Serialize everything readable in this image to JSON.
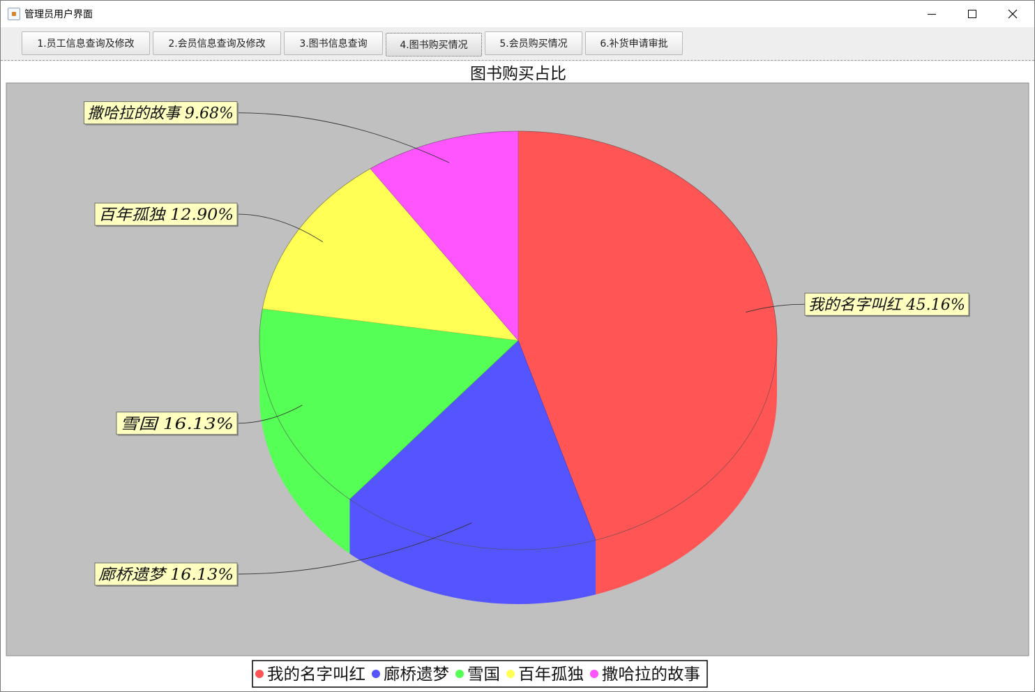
{
  "window": {
    "title": "管理员用户界面",
    "icon": "java-app-icon"
  },
  "tabs": [
    {
      "label": "1.员工信息查询及修改",
      "selected": false
    },
    {
      "label": "2.会员信息查询及修改",
      "selected": false
    },
    {
      "label": "3.图书信息查询",
      "selected": false
    },
    {
      "label": "4.图书购买情况",
      "selected": true
    },
    {
      "label": "5.会员购买情况",
      "selected": false
    },
    {
      "label": "6.补货申请审批",
      "selected": false
    }
  ],
  "chart_data": {
    "type": "pie",
    "style": "3d",
    "title": "图书购买占比",
    "slices": [
      {
        "name": "我的名字叫红",
        "value": 45.16,
        "label": "我的名字叫红  45.16%",
        "color": "#ff5555"
      },
      {
        "name": "廊桥遗梦",
        "value": 16.13,
        "label": "廊桥遗梦  16.13%",
        "color": "#5555ff"
      },
      {
        "name": "雪国",
        "value": 16.13,
        "label": "雪国  16.13%",
        "color": "#55ff55"
      },
      {
        "name": "百年孤独",
        "value": 12.9,
        "label": "百年孤独  12.90%",
        "color": "#ffff55"
      },
      {
        "name": "撒哈拉的故事",
        "value": 9.68,
        "label": "撒哈拉的故事  9.68%",
        "color": "#ff55ff"
      }
    ],
    "legend": {
      "position": "bottom",
      "entries": [
        "我的名字叫红",
        "廊桥遗梦",
        "雪国",
        "百年孤独",
        "撒哈拉的故事"
      ]
    },
    "plot_background": "#c0c0c0",
    "label_background": "#ffffc0"
  }
}
